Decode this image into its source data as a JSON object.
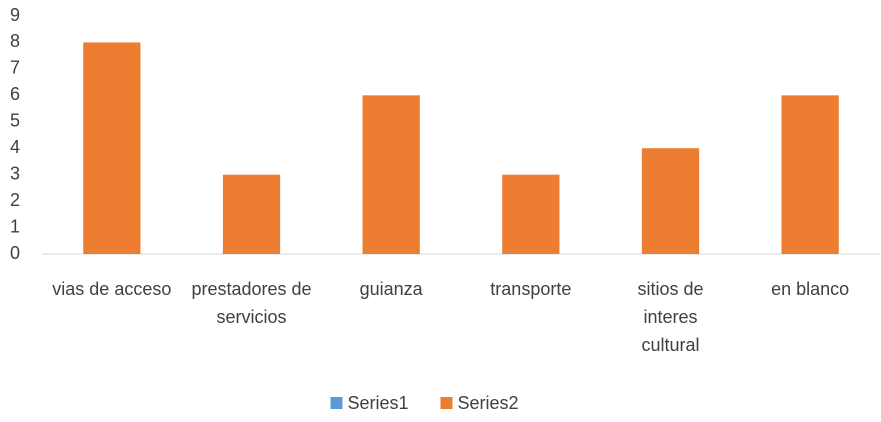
{
  "chart_data": {
    "type": "bar",
    "categories": [
      "vias de acceso",
      "prestadores de servicios",
      "guianza",
      "transporte",
      "sitios de interes cultural",
      "en blanco"
    ],
    "series": [
      {
        "name": "Series1",
        "color": "#5b9bd5",
        "values": [
          null,
          null,
          null,
          null,
          null,
          null
        ]
      },
      {
        "name": "Series2",
        "color": "#ed7d31",
        "values": [
          8,
          3,
          6,
          3,
          4,
          6
        ]
      }
    ],
    "ylim": [
      0,
      9
    ],
    "yticks": [
      0,
      1,
      2,
      3,
      4,
      5,
      6,
      7,
      8,
      9
    ],
    "grid": false,
    "legend": "bottom"
  }
}
